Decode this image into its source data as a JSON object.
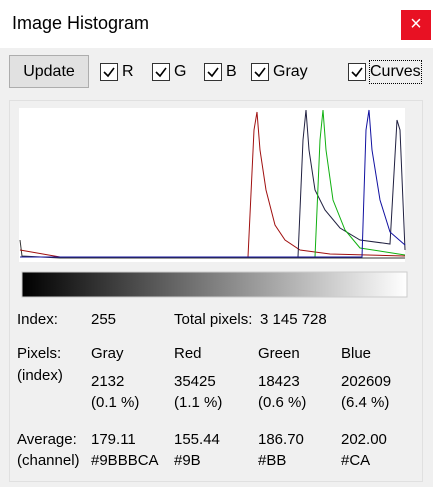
{
  "window": {
    "title": "Image Histogram",
    "close": "×"
  },
  "toolbar": {
    "button": "Update",
    "checkboxes": [
      {
        "label": "R",
        "checked": true
      },
      {
        "label": "G",
        "checked": true
      },
      {
        "label": "B",
        "checked": true
      },
      {
        "label": "Gray",
        "checked": true
      },
      {
        "label": "Curves",
        "checked": true
      }
    ]
  },
  "info": {
    "index_label": "Index:",
    "index_value": "255",
    "total_label": "Total pixels:",
    "total_value": "3 145 728",
    "pixels_label": "Pixels:",
    "pixels_sub": "(index)",
    "average_label": "Average:",
    "average_sub": "(channel)",
    "columns": [
      {
        "name": "Gray",
        "count": "2132",
        "percent": "(0.1 %)",
        "average": "179.11",
        "hex": "#9BBBCA"
      },
      {
        "name": "Red",
        "count": "35425",
        "percent": "(1.1 %)",
        "average": "155.44",
        "hex": "#9B"
      },
      {
        "name": "Green",
        "count": "18423",
        "percent": "(0.6 %)",
        "average": "186.70",
        "hex": "#BB"
      },
      {
        "name": "Blue",
        "count": "202609",
        "percent": "(6.4 %)",
        "average": "202.00",
        "hex": "#CA"
      }
    ]
  }
}
